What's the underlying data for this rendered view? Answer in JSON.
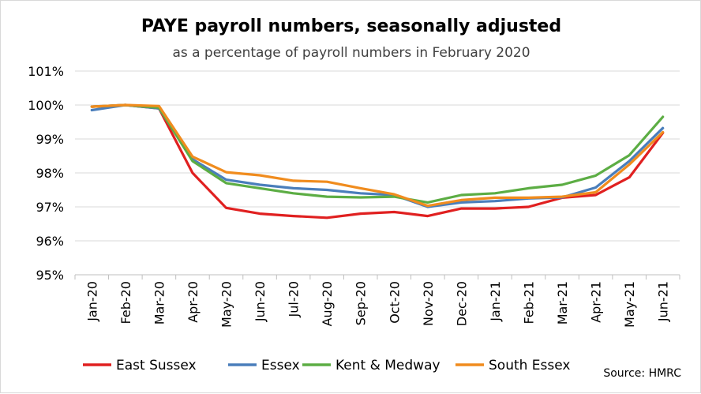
{
  "chart_data": {
    "type": "line",
    "title": "PAYE payroll numbers, seasonally adjusted",
    "subtitle": "as a percentage of payroll numbers in February 2020",
    "source": "Source: HMRC",
    "categories": [
      "Jan-20",
      "Feb-20",
      "Mar-20",
      "Apr-20",
      "May-20",
      "Jun-20",
      "Jul-20",
      "Aug-20",
      "Sep-20",
      "Oct-20",
      "Nov-20",
      "Dec-20",
      "Jan-21",
      "Feb-21",
      "Mar-21",
      "Apr-21",
      "May-21",
      "Jun-21"
    ],
    "y_ticks": [
      "95%",
      "96%",
      "97%",
      "98%",
      "99%",
      "100%",
      "101%"
    ],
    "ylim": [
      95,
      101
    ],
    "grid": true,
    "legend_position": "bottom",
    "series": [
      {
        "name": "East Sussex",
        "color": "#e02020",
        "values": [
          99.95,
          100.0,
          99.9,
          98.0,
          96.97,
          96.8,
          96.73,
          96.68,
          96.8,
          96.85,
          96.73,
          96.95,
          96.95,
          97.0,
          97.27,
          97.35,
          97.87,
          99.18
        ]
      },
      {
        "name": "Essex",
        "color": "#4a7ebb",
        "values": [
          99.85,
          100.0,
          99.9,
          98.4,
          97.8,
          97.65,
          97.55,
          97.5,
          97.4,
          97.35,
          97.0,
          97.13,
          97.17,
          97.25,
          97.28,
          97.57,
          98.35,
          99.32
        ]
      },
      {
        "name": "Kent & Medway",
        "color": "#5cad44",
        "values": [
          99.95,
          100.0,
          99.92,
          98.35,
          97.7,
          97.55,
          97.4,
          97.3,
          97.28,
          97.3,
          97.13,
          97.35,
          97.4,
          97.55,
          97.65,
          97.92,
          98.52,
          99.65
        ]
      },
      {
        "name": "South Essex",
        "color": "#f08c1e",
        "values": [
          99.95,
          100.0,
          99.97,
          98.48,
          98.02,
          97.93,
          97.77,
          97.74,
          97.55,
          97.37,
          97.03,
          97.2,
          97.27,
          97.27,
          97.3,
          97.43,
          98.25,
          99.2
        ]
      }
    ]
  }
}
